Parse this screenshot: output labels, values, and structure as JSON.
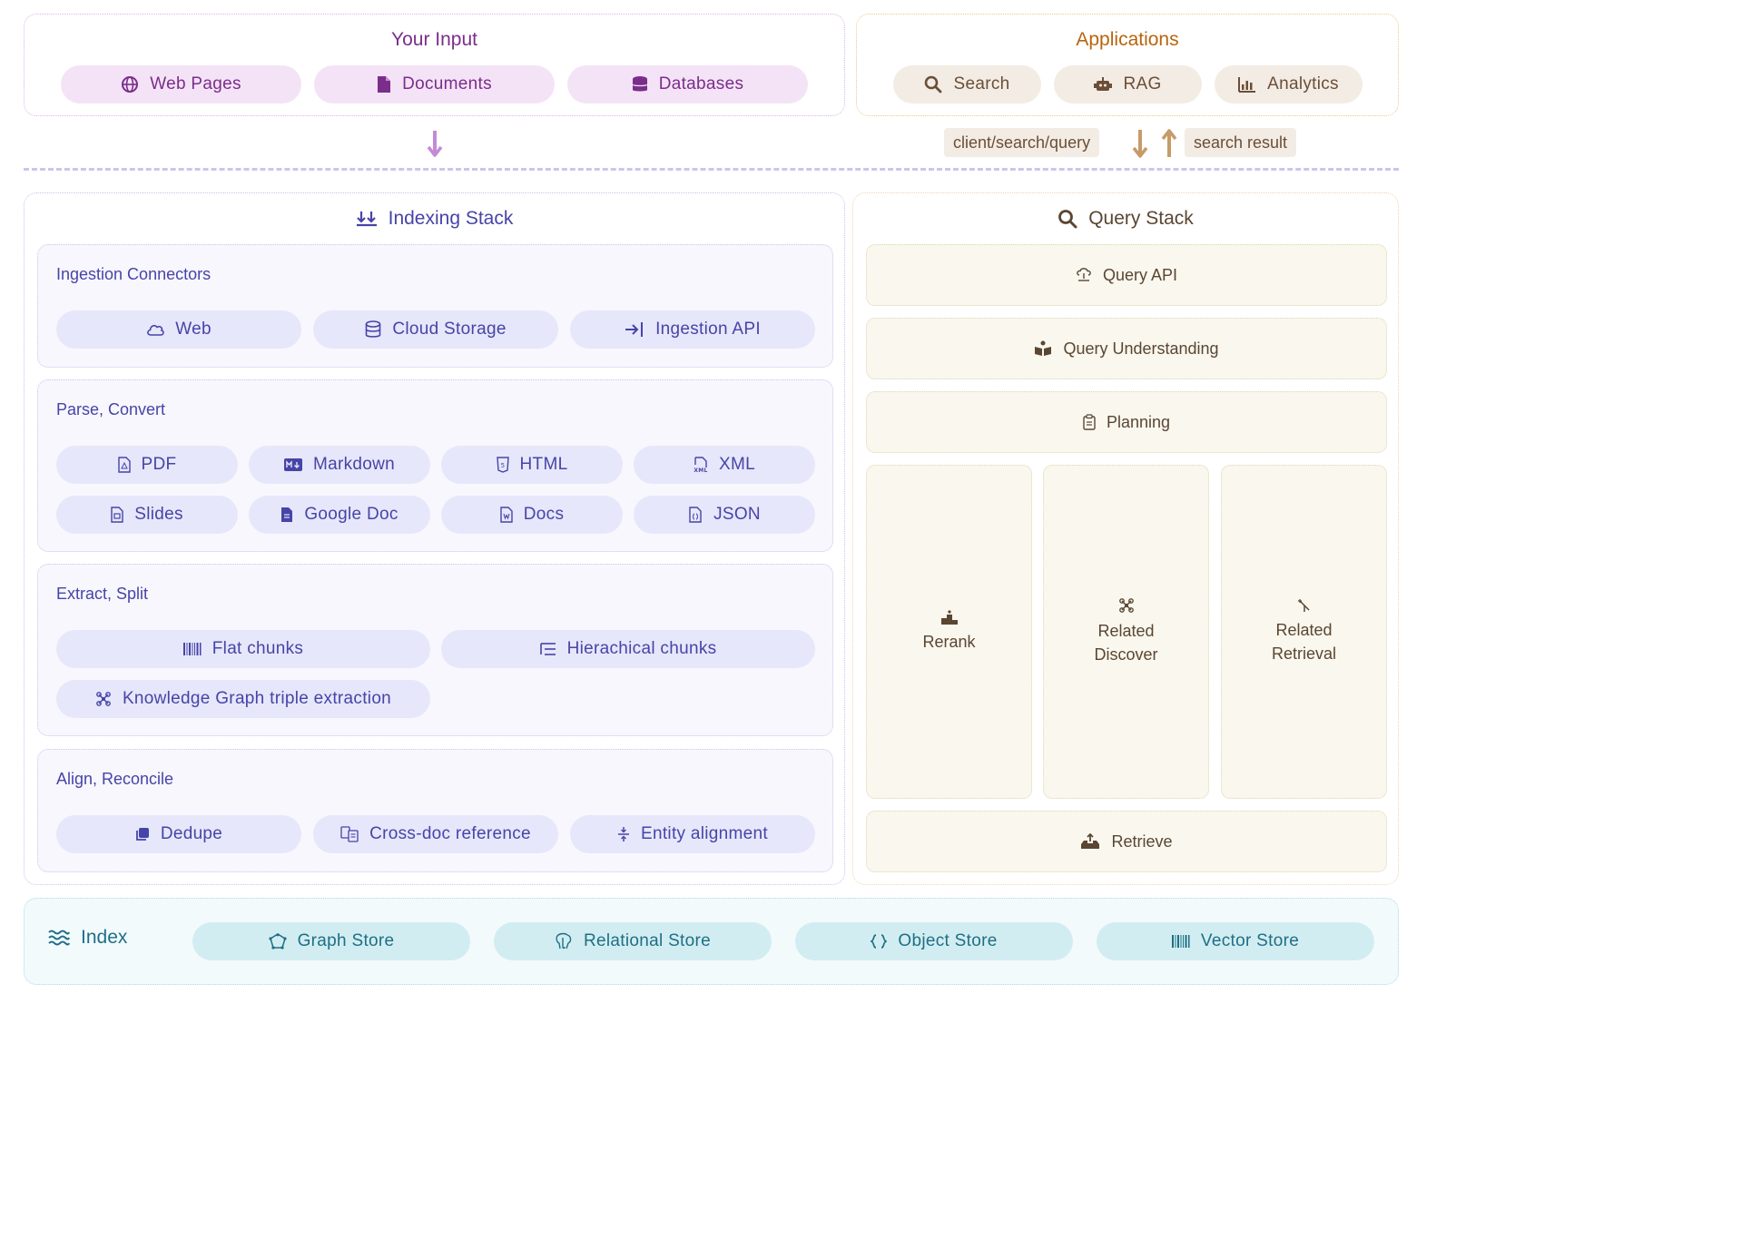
{
  "your_input": {
    "title": "Your Input",
    "items": [
      "Web Pages",
      "Documents",
      "Databases"
    ]
  },
  "applications": {
    "title": "Applications",
    "items": [
      "Search",
      "RAG",
      "Analytics"
    ]
  },
  "arrows": {
    "query_label": "client/search/query",
    "result_label": "search result"
  },
  "indexing": {
    "title": "Indexing Stack",
    "ingestion": {
      "title": "Ingestion Connectors",
      "items": [
        "Web",
        "Cloud Storage",
        "Ingestion API"
      ]
    },
    "parse": {
      "title": "Parse, Convert",
      "items": [
        "PDF",
        "Markdown",
        "HTML",
        "XML",
        "Slides",
        "Google Doc",
        "Docs",
        "JSON"
      ]
    },
    "extract": {
      "title": "Extract, Split",
      "items": [
        "Flat chunks",
        "Hierachical chunks",
        "Knowledge Graph triple extraction"
      ]
    },
    "align": {
      "title": "Align, Reconcile",
      "items": [
        "Dedupe",
        "Cross-doc reference",
        "Entity alignment"
      ]
    }
  },
  "query": {
    "title": "Query Stack",
    "api": "Query API",
    "understanding": "Query Understanding",
    "planning": "Planning",
    "rerank": "Rerank",
    "related_discover": [
      "Related",
      "Discover"
    ],
    "related_retrieval": [
      "Related",
      "Retrieval"
    ],
    "retrieve": "Retrieve"
  },
  "index": {
    "title": "Index",
    "items": [
      "Graph Store",
      "Relational Store",
      "Object Store",
      "Vector Store"
    ]
  },
  "colors": {
    "input_accent": "#7b2d8c",
    "applications_accent": "#b8640f",
    "indexing_accent": "#4744a8",
    "query_accent": "#5a4632",
    "index_accent": "#1e6f86"
  }
}
